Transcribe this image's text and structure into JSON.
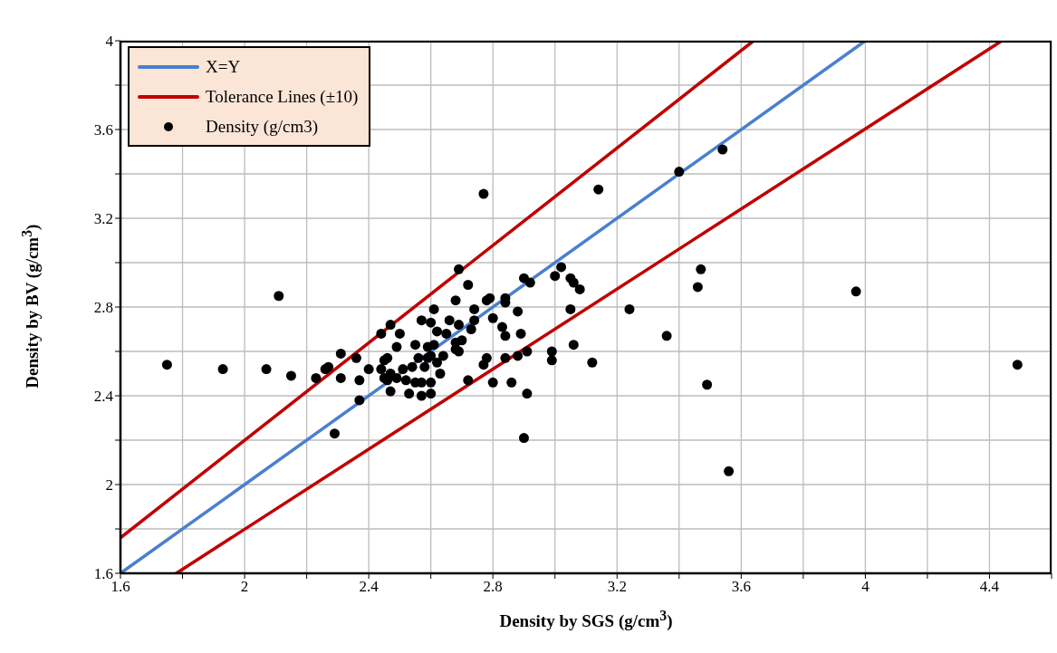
{
  "chart_data": {
    "type": "scatter",
    "xlabel": "Density by SGS (g/cm$^{3}$)",
    "ylabel": "Density by BV (g/cm$^{3}$)",
    "xlim": [
      1.6,
      4.6
    ],
    "xticks": [
      1.6,
      {
        "value": 1.8,
        "label": null
      },
      2,
      {
        "value": 2.2,
        "label": null
      },
      2.4,
      {
        "value": 2.6,
        "label": null
      },
      2.8,
      {
        "value": 3.0,
        "label": null
      },
      3.2,
      {
        "value": 3.4,
        "label": null
      },
      3.6,
      {
        "value": 3.8,
        "label": null
      },
      4,
      {
        "value": 4.2,
        "label": null
      },
      4.4,
      {
        "value": 4.6,
        "label": null
      }
    ],
    "ylim": [
      1.6,
      4
    ],
    "yticks": [
      1.6,
      {
        "value": 1.8,
        "label": null
      },
      2,
      {
        "value": 2.2,
        "label": null
      },
      2.4,
      {
        "value": 2.6,
        "label": null
      },
      2.8,
      {
        "value": 3.0,
        "label": null
      },
      3.2,
      {
        "value": 3.4,
        "label": null
      },
      3.6,
      {
        "value": 3.8,
        "label": null
      },
      4
    ],
    "grid": true,
    "legend": "top left",
    "line_style": "solid",
    "series": [
      {
        "type": "line",
        "marker": "none",
        "name": "X=Y",
        "color": "#4a7fd0",
        "x": [
          1.6,
          4
        ],
        "values": [
          1.6,
          4
        ]
      },
      {
        "type": "line",
        "marker": "none",
        "name": "Tolerance Lines (±10)",
        "color": "#c00000",
        "x": [
          1.6,
          3.64
        ],
        "values": [
          1.76,
          4
        ]
      },
      {
        "type": "line",
        "marker": "none",
        "color": "#c00000",
        "x": [
          1.78,
          4.44
        ],
        "values": [
          1.6,
          4
        ]
      },
      {
        "marker": "circle",
        "name": "Density (g/cm3)",
        "color": "#000000",
        "x": [
          1.75,
          1.93,
          2.07,
          2.15,
          2.11,
          2.23,
          2.26,
          2.27,
          2.31,
          2.31,
          2.36,
          2.37,
          2.37,
          2.4,
          2.29,
          2.44,
          2.47,
          2.5,
          2.49,
          2.46,
          2.45,
          2.44,
          2.45,
          2.47,
          2.47,
          2.46,
          2.49,
          2.51,
          2.52,
          2.53,
          2.55,
          2.54,
          2.56,
          2.57,
          2.57,
          2.6,
          2.61,
          2.59,
          2.59,
          2.58,
          2.55,
          2.57,
          2.6,
          2.6,
          2.62,
          2.61,
          2.6,
          2.62,
          2.63,
          2.64,
          2.65,
          2.66,
          2.68,
          2.69,
          2.7,
          2.68,
          2.69,
          2.69,
          2.68,
          2.72,
          2.74,
          2.73,
          2.74,
          2.78,
          2.79,
          2.8,
          2.83,
          2.84,
          2.84,
          2.84,
          2.88,
          2.89,
          2.9,
          2.92,
          2.84,
          2.78,
          2.77,
          2.72,
          2.8,
          2.86,
          2.88,
          2.91,
          2.91,
          2.9,
          2.99,
          2.99,
          3.06,
          3.0,
          3.02,
          3.05,
          3.06,
          3.08,
          3.05,
          3.12,
          3.24,
          3.36,
          3.47,
          3.46,
          3.49,
          3.56,
          3.14,
          3.4,
          3.54,
          3.97,
          4.49,
          2.77
        ],
        "values": [
          2.54,
          2.52,
          2.52,
          2.49,
          2.85,
          2.48,
          2.52,
          2.53,
          2.59,
          2.48,
          2.57,
          2.47,
          2.38,
          2.52,
          2.23,
          2.68,
          2.72,
          2.68,
          2.62,
          2.57,
          2.56,
          2.52,
          2.48,
          2.5,
          2.42,
          2.47,
          2.48,
          2.52,
          2.47,
          2.41,
          2.63,
          2.53,
          2.57,
          2.4,
          2.74,
          2.73,
          2.79,
          2.62,
          2.57,
          2.53,
          2.46,
          2.46,
          2.46,
          2.41,
          2.69,
          2.63,
          2.58,
          2.55,
          2.5,
          2.58,
          2.68,
          2.74,
          2.64,
          2.72,
          2.65,
          2.61,
          2.6,
          2.97,
          2.83,
          2.9,
          2.79,
          2.7,
          2.74,
          2.83,
          2.84,
          2.75,
          2.71,
          2.67,
          2.82,
          2.84,
          2.78,
          2.68,
          2.93,
          2.91,
          2.57,
          2.57,
          2.54,
          2.47,
          2.46,
          2.46,
          2.58,
          2.6,
          2.41,
          2.21,
          2.6,
          2.56,
          2.63,
          2.94,
          2.98,
          2.93,
          2.91,
          2.88,
          2.79,
          2.55,
          2.79,
          2.67,
          2.97,
          2.89,
          2.45,
          2.06,
          3.33,
          3.41,
          3.51,
          2.87,
          2.54,
          3.31
        ]
      }
    ]
  }
}
